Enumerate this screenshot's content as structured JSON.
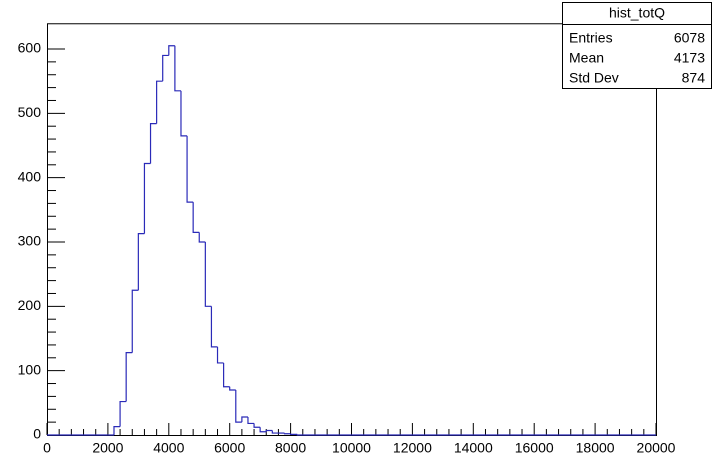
{
  "chart_data": {
    "type": "histogram",
    "bins": [
      2000,
      2200,
      2400,
      2600,
      2800,
      3000,
      3200,
      3400,
      3600,
      3800,
      4000,
      4200,
      4400,
      4600,
      4800,
      5000,
      5200,
      5400,
      5600,
      5800,
      6000,
      6200,
      6400,
      6600,
      6800,
      7000,
      7200,
      7400,
      7600,
      7800,
      8000,
      8200
    ],
    "counts": [
      0,
      13,
      52,
      128,
      225,
      313,
      422,
      484,
      550,
      590,
      605,
      535,
      465,
      362,
      315,
      300,
      200,
      137,
      112,
      75,
      70,
      20,
      28,
      18,
      12,
      5,
      7,
      3,
      3,
      2,
      1
    ],
    "color": "#2a2ab8",
    "xlim": [
      0,
      20000
    ],
    "xticks": [
      0,
      2000,
      4000,
      6000,
      8000,
      10000,
      12000,
      14000,
      16000,
      18000,
      20000
    ],
    "ylim": [
      0,
      640
    ],
    "yticks": [
      0,
      100,
      200,
      300,
      400,
      500,
      600
    ],
    "stats": {
      "title": "hist_totQ",
      "rows": [
        {
          "label": "Entries",
          "value": 6078
        },
        {
          "label": "Mean",
          "value": 4173
        },
        {
          "label": "Std Dev",
          "value": 874
        }
      ]
    }
  }
}
